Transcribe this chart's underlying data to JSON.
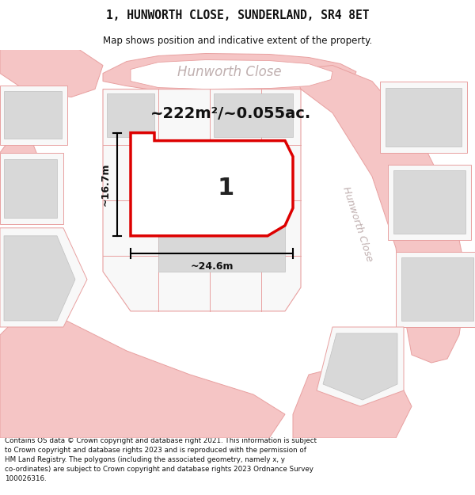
{
  "title_line1": "1, HUNWORTH CLOSE, SUNDERLAND, SR4 8ET",
  "title_line2": "Map shows position and indicative extent of the property.",
  "footer_text": "Contains OS data © Crown copyright and database right 2021. This information is subject\nto Crown copyright and database rights 2023 and is reproduced with the permission of\nHM Land Registry. The polygons (including the associated geometry, namely x, y\nco-ordinates) are subject to Crown copyright and database rights 2023 Ordnance Survey\n100026316.",
  "road_color": "#f5c5c5",
  "road_edge_color": "#e8a0a0",
  "building_color": "#d8d8d8",
  "building_edge_color": "#c0c0c0",
  "plot_fill": "#ffffff",
  "plot_outline": "#dd0000",
  "area_text": "~222m²/~0.055ac.",
  "plot_number": "1",
  "dim_width": "~24.6m",
  "dim_height": "~16.7m",
  "street_top": "Hunworth Close",
  "street_right": "Hunworth Close",
  "street_color": "#c0b0b0",
  "map_bg": "#ffffff"
}
